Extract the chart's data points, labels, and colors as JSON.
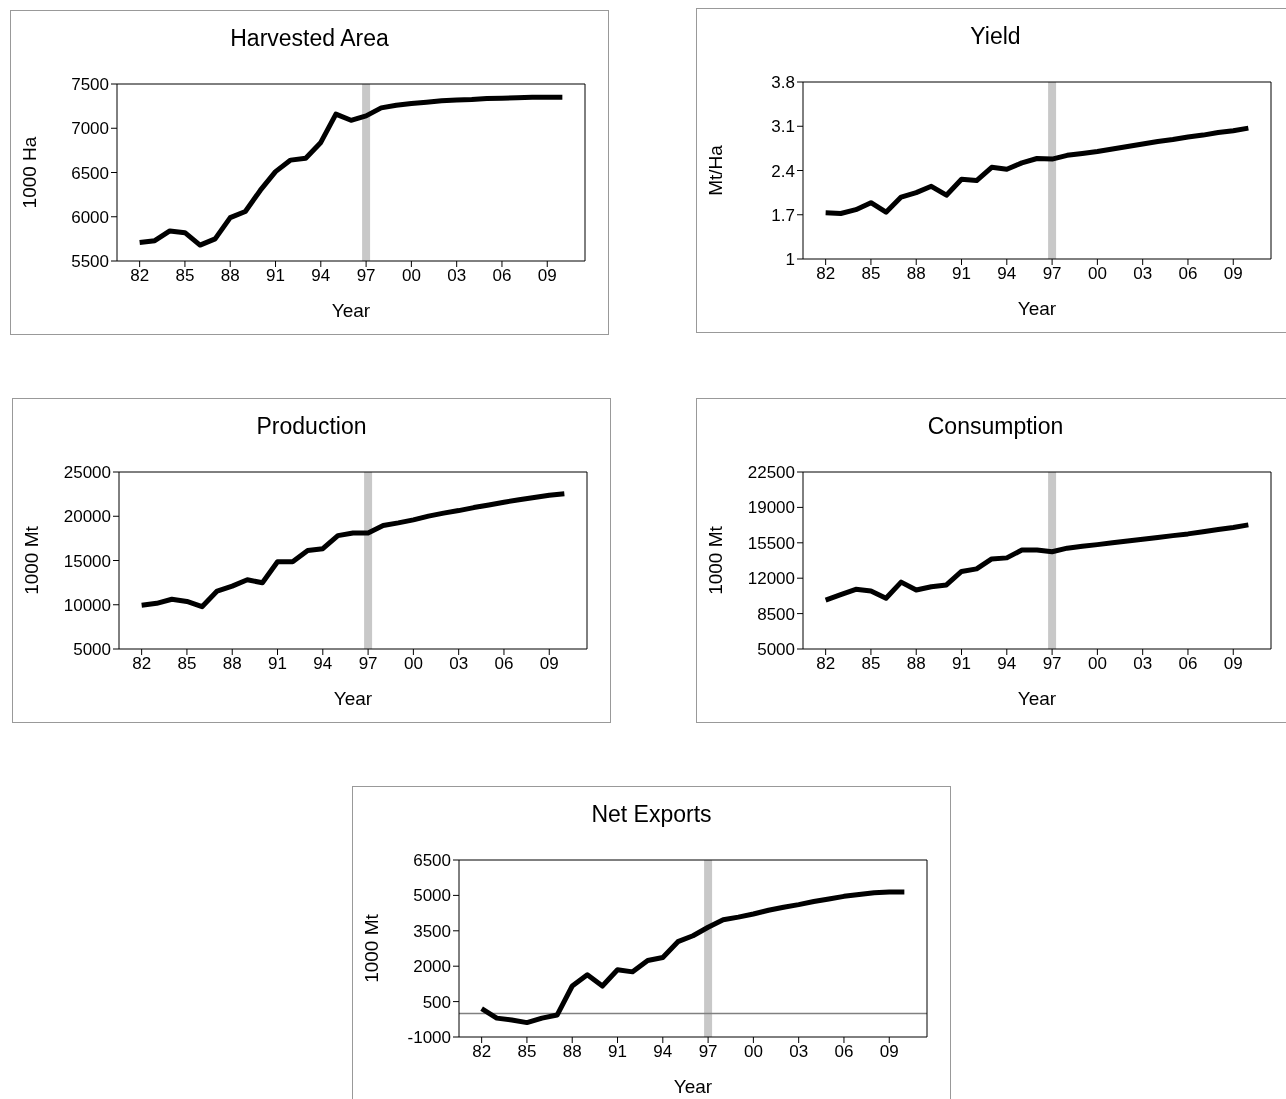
{
  "chart_data": [
    {
      "type": "line",
      "title": "Harvested Area",
      "xlabel": "Year",
      "ylabel": "1000 Ha",
      "x": [
        1982,
        1983,
        1984,
        1985,
        1986,
        1987,
        1988,
        1989,
        1990,
        1991,
        1992,
        1993,
        1994,
        1995,
        1996,
        1997,
        1998,
        1999,
        2000,
        2001,
        2002,
        2003,
        2004,
        2005,
        2006,
        2007,
        2008,
        2009,
        2010
      ],
      "series": [
        {
          "color": "#000000",
          "values": [
            5710,
            5730,
            5840,
            5820,
            5680,
            5750,
            5990,
            6060,
            6300,
            6510,
            6640,
            6660,
            6840,
            7160,
            7090,
            7140,
            7230,
            7260,
            7280,
            7295,
            7310,
            7320,
            7325,
            7335,
            7340,
            7345,
            7350,
            7350,
            7350
          ]
        }
      ],
      "xlim": [
        1980.5,
        2011.5
      ],
      "xticks": [
        {
          "value": 1982,
          "label": "82"
        },
        {
          "value": 1985,
          "label": "85"
        },
        {
          "value": 1988,
          "label": "88"
        },
        {
          "value": 1991,
          "label": "91"
        },
        {
          "value": 1994,
          "label": "94"
        },
        {
          "value": 1997,
          "label": "97"
        },
        {
          "value": 2000,
          "label": "00"
        },
        {
          "value": 2003,
          "label": "03"
        },
        {
          "value": 2006,
          "label": "06"
        },
        {
          "value": 2009,
          "label": "09"
        }
      ],
      "ylim": [
        5500,
        7500
      ],
      "yticks": [
        5500,
        6000,
        6500,
        7000,
        7500
      ],
      "ref_lines": [
        {
          "axis": "x",
          "value": 1997,
          "color": "#c8c8c8"
        }
      ]
    },
    {
      "type": "line",
      "title": "Yield",
      "xlabel": "Year",
      "ylabel": "Mt/Ha",
      "x": [
        1982,
        1983,
        1984,
        1985,
        1986,
        1987,
        1988,
        1989,
        1990,
        1991,
        1992,
        1993,
        1994,
        1995,
        1996,
        1997,
        1998,
        1999,
        2000,
        2001,
        2002,
        2003,
        2004,
        2005,
        2006,
        2007,
        2008,
        2009,
        2010
      ],
      "series": [
        {
          "color": "#000000",
          "values": [
            1.73,
            1.72,
            1.78,
            1.89,
            1.74,
            1.98,
            2.05,
            2.15,
            2.01,
            2.26,
            2.24,
            2.45,
            2.42,
            2.52,
            2.59,
            2.58,
            2.64,
            2.67,
            2.7,
            2.74,
            2.78,
            2.82,
            2.86,
            2.89,
            2.93,
            2.96,
            3.0,
            3.03,
            3.07
          ]
        }
      ],
      "xlim": [
        1980.5,
        2011.5
      ],
      "xticks": [
        {
          "value": 1982,
          "label": "82"
        },
        {
          "value": 1985,
          "label": "85"
        },
        {
          "value": 1988,
          "label": "88"
        },
        {
          "value": 1991,
          "label": "91"
        },
        {
          "value": 1994,
          "label": "94"
        },
        {
          "value": 1997,
          "label": "97"
        },
        {
          "value": 2000,
          "label": "00"
        },
        {
          "value": 2003,
          "label": "03"
        },
        {
          "value": 2006,
          "label": "06"
        },
        {
          "value": 2009,
          "label": "09"
        }
      ],
      "ylim": [
        1,
        3.8
      ],
      "yticks": [
        1,
        1.7,
        2.4,
        3.1,
        3.8
      ],
      "ref_lines": [
        {
          "axis": "x",
          "value": 1997,
          "color": "#c8c8c8"
        }
      ]
    },
    {
      "type": "line",
      "title": "Production",
      "xlabel": "Year",
      "ylabel": "1000 Mt",
      "x": [
        1982,
        1983,
        1984,
        1985,
        1986,
        1987,
        1988,
        1989,
        1990,
        1991,
        1992,
        1993,
        1994,
        1995,
        1996,
        1997,
        1998,
        1999,
        2000,
        2001,
        2002,
        2003,
        2004,
        2005,
        2006,
        2007,
        2008,
        2009,
        2010
      ],
      "series": [
        {
          "color": "#000000",
          "values": [
            9950,
            10160,
            10620,
            10370,
            9780,
            11550,
            12100,
            12820,
            12480,
            14850,
            14850,
            16120,
            16330,
            17810,
            18110,
            18110,
            18950,
            19250,
            19590,
            20010,
            20350,
            20640,
            20980,
            21280,
            21580,
            21870,
            22120,
            22380,
            22550
          ]
        }
      ],
      "xlim": [
        1980.5,
        2011.5
      ],
      "xticks": [
        {
          "value": 1982,
          "label": "82"
        },
        {
          "value": 1985,
          "label": "85"
        },
        {
          "value": 1988,
          "label": "88"
        },
        {
          "value": 1991,
          "label": "91"
        },
        {
          "value": 1994,
          "label": "94"
        },
        {
          "value": 1997,
          "label": "97"
        },
        {
          "value": 2000,
          "label": "00"
        },
        {
          "value": 2003,
          "label": "03"
        },
        {
          "value": 2006,
          "label": "06"
        },
        {
          "value": 2009,
          "label": "09"
        }
      ],
      "ylim": [
        5000,
        25000
      ],
      "yticks": [
        5000,
        10000,
        15000,
        20000,
        25000
      ],
      "ref_lines": [
        {
          "axis": "x",
          "value": 1997,
          "color": "#c8c8c8"
        }
      ]
    },
    {
      "type": "line",
      "title": "Consumption",
      "xlabel": "Year",
      "ylabel": "1000 Mt",
      "x": [
        1982,
        1983,
        1984,
        1985,
        1986,
        1987,
        1988,
        1989,
        1990,
        1991,
        1992,
        1993,
        1994,
        1995,
        1996,
        1997,
        1998,
        1999,
        2000,
        2001,
        2002,
        2003,
        2004,
        2005,
        2006,
        2007,
        2008,
        2009,
        2010
      ],
      "series": [
        {
          "color": "#000000",
          "values": [
            9840,
            10370,
            10900,
            10730,
            10020,
            11610,
            10830,
            11150,
            11330,
            12670,
            12920,
            13910,
            14010,
            14790,
            14790,
            14610,
            14970,
            15150,
            15320,
            15500,
            15680,
            15850,
            16030,
            16210,
            16380,
            16590,
            16810,
            17020,
            17270
          ]
        }
      ],
      "xlim": [
        1980.5,
        2011.5
      ],
      "xticks": [
        {
          "value": 1982,
          "label": "82"
        },
        {
          "value": 1985,
          "label": "85"
        },
        {
          "value": 1988,
          "label": "88"
        },
        {
          "value": 1991,
          "label": "91"
        },
        {
          "value": 1994,
          "label": "94"
        },
        {
          "value": 1997,
          "label": "97"
        },
        {
          "value": 2000,
          "label": "00"
        },
        {
          "value": 2003,
          "label": "03"
        },
        {
          "value": 2006,
          "label": "06"
        },
        {
          "value": 2009,
          "label": "09"
        }
      ],
      "ylim": [
        5000,
        22500
      ],
      "yticks": [
        5000,
        8500,
        12000,
        15500,
        19000,
        22500
      ],
      "ref_lines": [
        {
          "axis": "x",
          "value": 1997,
          "color": "#c8c8c8"
        }
      ]
    },
    {
      "type": "line",
      "title": "Net Exports",
      "xlabel": "Year",
      "ylabel": "1000 Mt",
      "x": [
        1982,
        1983,
        1984,
        1985,
        1986,
        1987,
        1988,
        1989,
        1990,
        1991,
        1992,
        1993,
        1994,
        1995,
        1996,
        1997,
        1998,
        1999,
        2000,
        2001,
        2002,
        2003,
        2004,
        2005,
        2006,
        2007,
        2008,
        2009,
        2010
      ],
      "series": [
        {
          "color": "#000000",
          "values": [
            200,
            -200,
            -280,
            -390,
            -200,
            -70,
            1160,
            1640,
            1160,
            1850,
            1760,
            2240,
            2370,
            3040,
            3290,
            3650,
            3970,
            4080,
            4210,
            4370,
            4500,
            4610,
            4740,
            4850,
            4960,
            5040,
            5110,
            5140,
            5140
          ]
        }
      ],
      "xlim": [
        1980.5,
        2011.5
      ],
      "xticks": [
        {
          "value": 1982,
          "label": "82"
        },
        {
          "value": 1985,
          "label": "85"
        },
        {
          "value": 1988,
          "label": "88"
        },
        {
          "value": 1991,
          "label": "91"
        },
        {
          "value": 1994,
          "label": "94"
        },
        {
          "value": 1997,
          "label": "97"
        },
        {
          "value": 2000,
          "label": "00"
        },
        {
          "value": 2003,
          "label": "03"
        },
        {
          "value": 2006,
          "label": "06"
        },
        {
          "value": 2009,
          "label": "09"
        }
      ],
      "ylim": [
        -1000,
        6500
      ],
      "yticks": [
        -1000,
        500,
        2000,
        3500,
        5000,
        6500
      ],
      "ref_lines": [
        {
          "axis": "x",
          "value": 1997,
          "color": "#c8c8c8"
        },
        {
          "axis": "y",
          "value": 0,
          "color": "#808080"
        }
      ]
    }
  ]
}
